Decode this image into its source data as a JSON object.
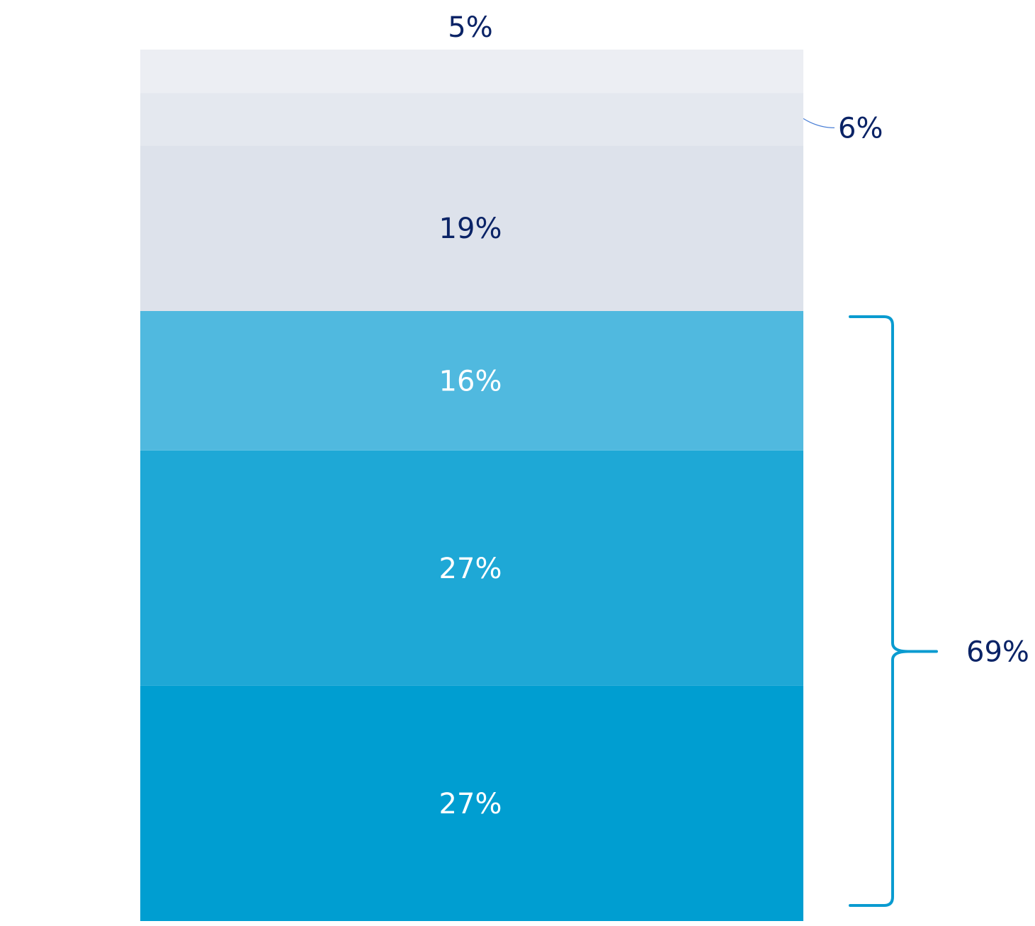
{
  "chart_data": {
    "type": "bar",
    "stacked": true,
    "categories": [
      ""
    ],
    "series": [
      {
        "values": [
          27
        ],
        "label": "27%"
      },
      {
        "values": [
          27
        ],
        "label": "27%"
      },
      {
        "values": [
          16
        ],
        "label": "16%"
      },
      {
        "values": [
          19
        ],
        "label": "19%"
      },
      {
        "values": [
          6
        ],
        "label": "6%"
      },
      {
        "values": [
          5
        ],
        "label": "5%"
      }
    ],
    "ylim": [
      0,
      100
    ],
    "grid": false,
    "legend": "none",
    "annotations": [
      {
        "text": "69%",
        "brace_over_series": [
          0,
          1,
          2
        ]
      }
    ],
    "colors": [
      "#009ed1",
      "#1ea8d6",
      "#50b9df",
      "#dde2eb",
      "#e4e8ef",
      "#eceef3"
    ],
    "label_colors": [
      "#ffffff",
      "#ffffff",
      "#ffffff",
      "#0a2366",
      "#0a2366",
      "#0a2366"
    ],
    "brace_color": "#0a9bd0",
    "text_color": "#0a2366"
  }
}
